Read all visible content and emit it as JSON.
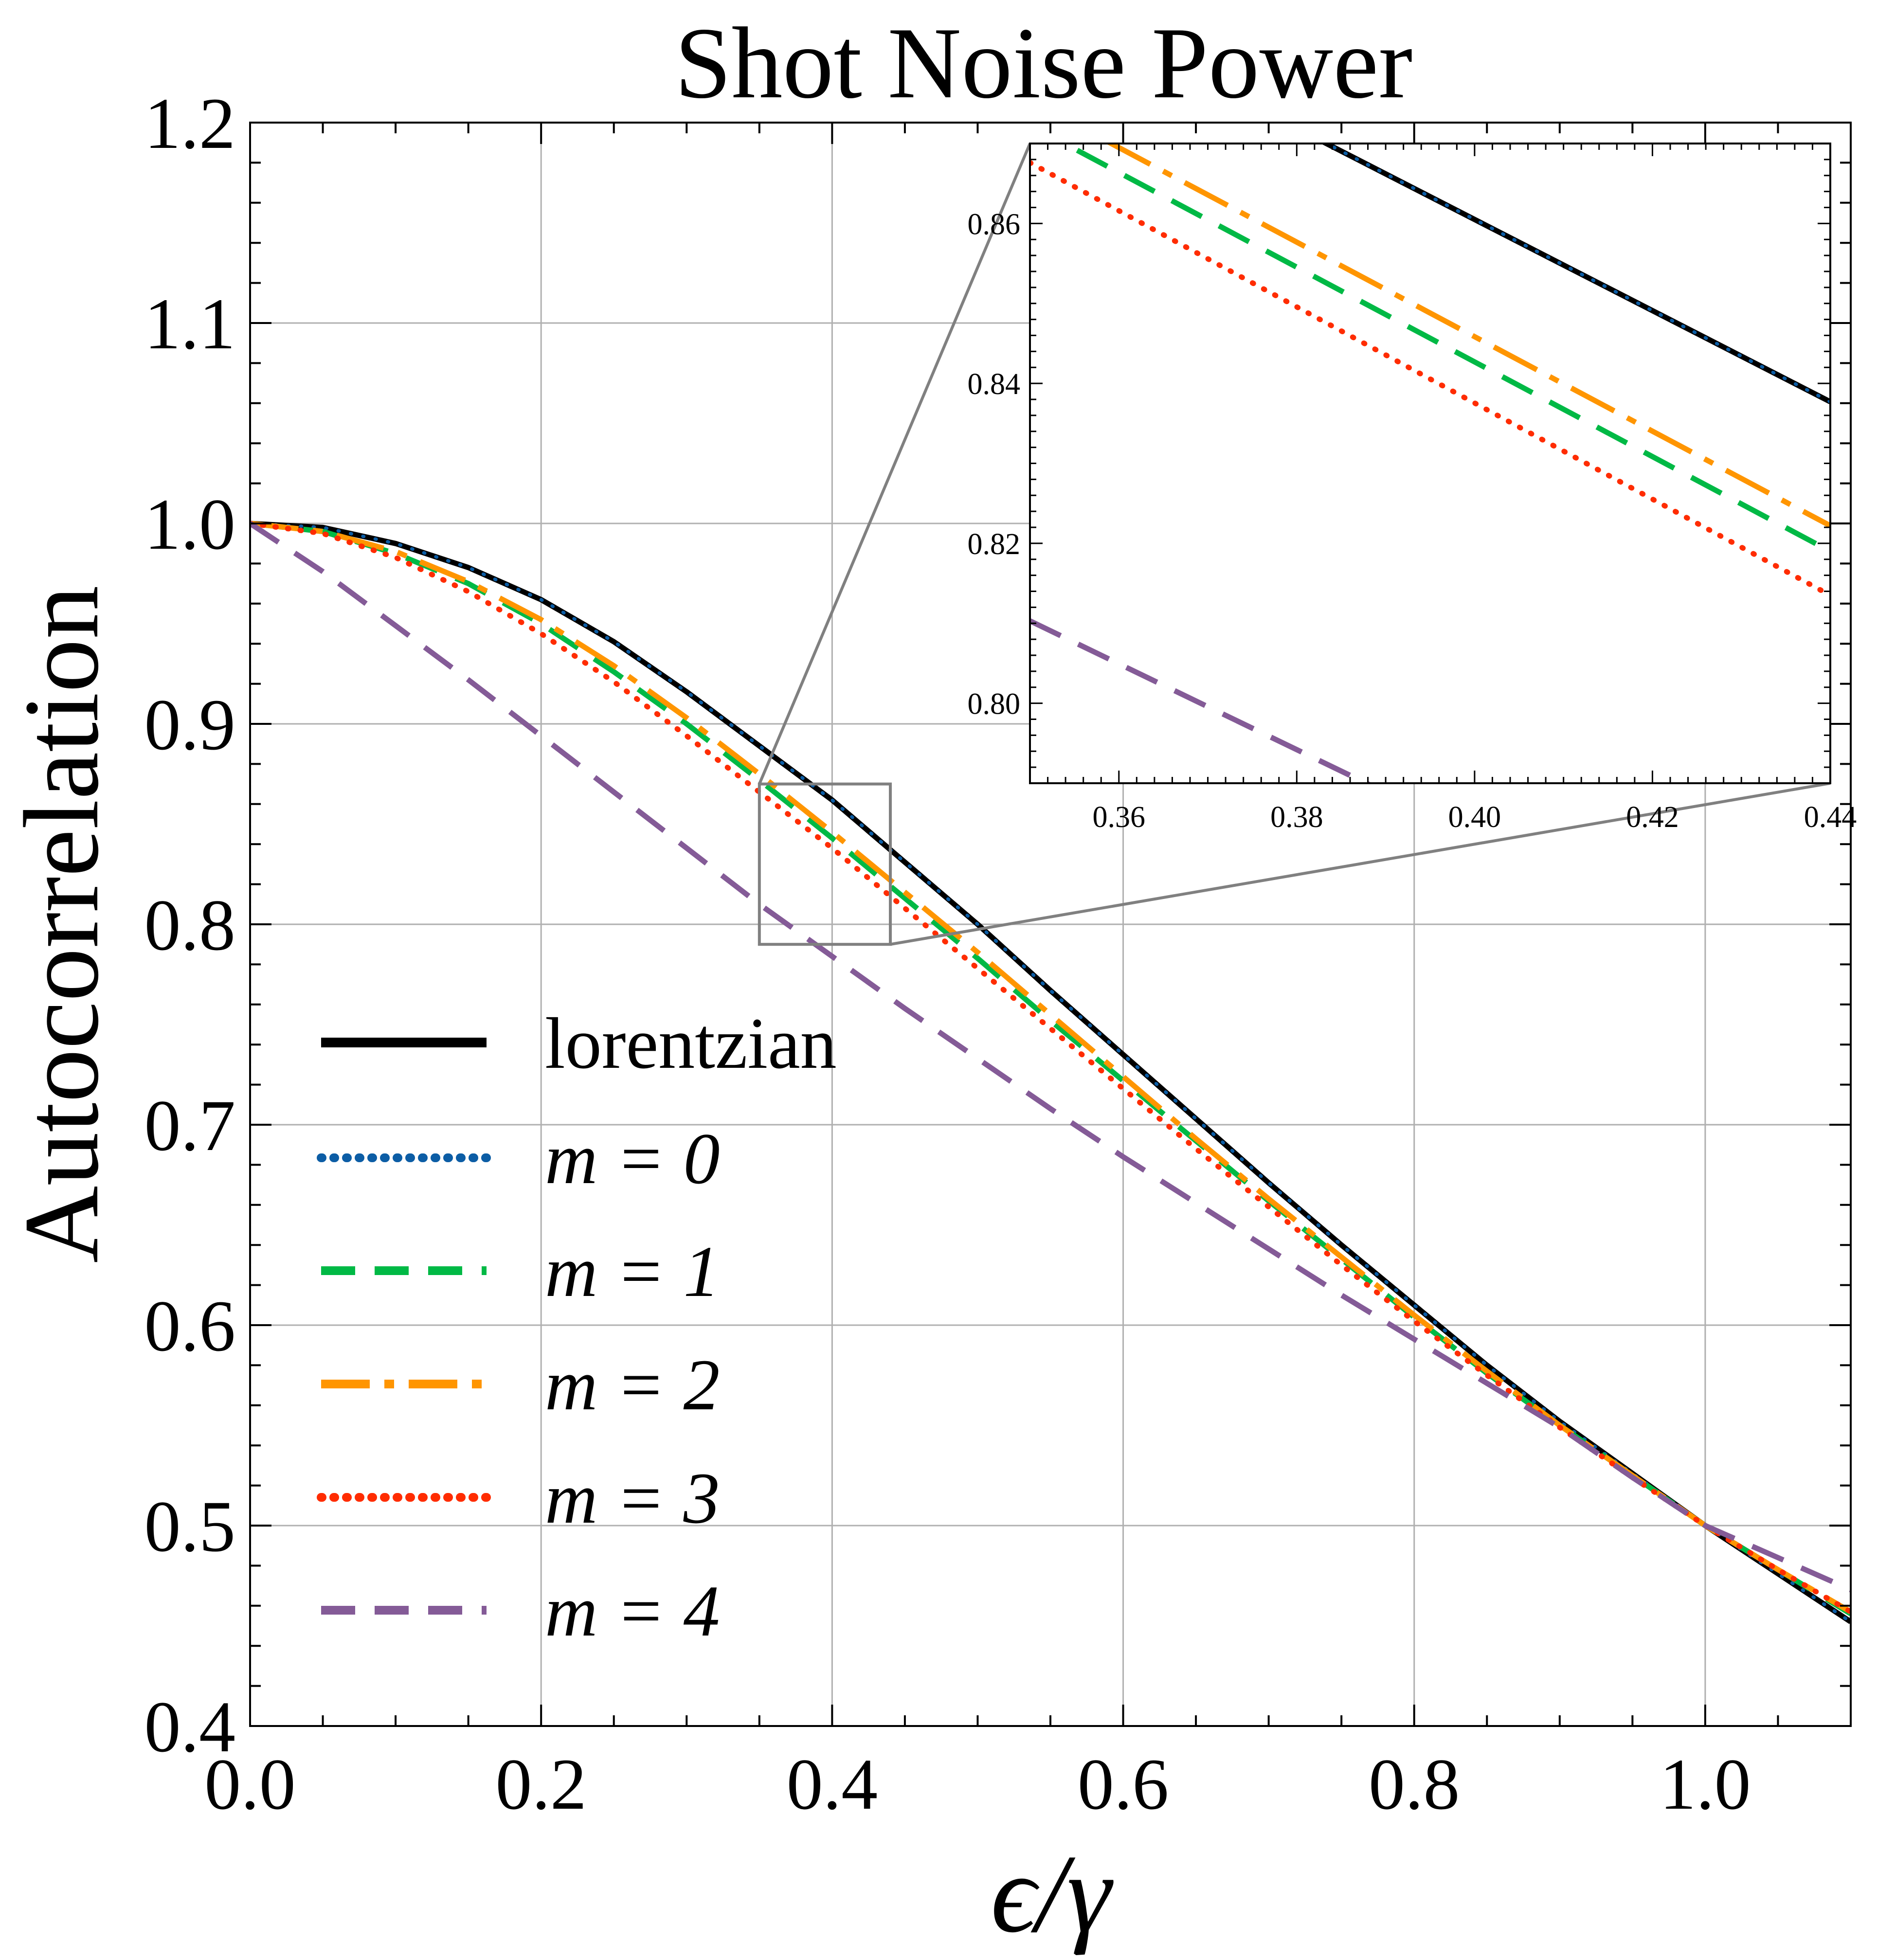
{
  "chart_data": {
    "type": "line",
    "title": "Shot Noise Power",
    "xlabel": "ϵ/γ",
    "ylabel": "Autocorrelation",
    "xlim": [
      0.0,
      1.1
    ],
    "ylim": [
      0.4,
      1.2
    ],
    "xticks": [
      "0.0",
      "0.2",
      "0.4",
      "0.6",
      "0.8",
      "1.0"
    ],
    "yticks": [
      "0.4",
      "0.5",
      "0.6",
      "0.7",
      "0.8",
      "0.9",
      "1.0",
      "1.1",
      "1.2"
    ],
    "grid": true,
    "legend_position": "lower-left",
    "x": [
      0.0,
      0.05,
      0.1,
      0.15,
      0.2,
      0.25,
      0.3,
      0.35,
      0.4,
      0.45,
      0.5,
      0.55,
      0.6,
      0.65,
      0.7,
      0.75,
      0.8,
      0.85,
      0.9,
      0.95,
      1.0,
      1.05,
      1.1
    ],
    "series": [
      {
        "name": "lorentzian",
        "color": "#000000",
        "dash": "solid",
        "width": 11,
        "values": [
          1.0,
          0.998,
          0.99,
          0.978,
          0.962,
          0.941,
          0.916,
          0.889,
          0.862,
          0.831,
          0.8,
          0.767,
          0.735,
          0.703,
          0.671,
          0.64,
          0.61,
          0.58,
          0.552,
          0.526,
          0.5,
          0.476,
          0.452
        ]
      },
      {
        "name": "m = 0",
        "color": "#0c5da5",
        "dash": "dotted",
        "width": 7,
        "values": [
          1.0,
          0.998,
          0.99,
          0.978,
          0.962,
          0.941,
          0.916,
          0.889,
          0.862,
          0.831,
          0.8,
          0.767,
          0.735,
          0.703,
          0.671,
          0.64,
          0.61,
          0.58,
          0.552,
          0.526,
          0.5,
          0.476,
          0.452
        ]
      },
      {
        "name": "m = 1",
        "color": "#00b945",
        "dash": "dashed",
        "width": 11,
        "values": [
          1.0,
          0.996,
          0.985,
          0.97,
          0.95,
          0.926,
          0.9,
          0.872,
          0.843,
          0.813,
          0.783,
          0.752,
          0.722,
          0.692,
          0.662,
          0.633,
          0.604,
          0.576,
          0.55,
          0.525,
          0.5,
          0.478,
          0.456
        ]
      },
      {
        "name": "m = 2",
        "color": "#ff9500",
        "dash": "dashdot",
        "width": 11,
        "values": [
          1.0,
          0.996,
          0.986,
          0.971,
          0.952,
          0.929,
          0.903,
          0.875,
          0.846,
          0.816,
          0.786,
          0.755,
          0.724,
          0.693,
          0.663,
          0.634,
          0.605,
          0.577,
          0.55,
          0.525,
          0.5,
          0.478,
          0.457
        ]
      },
      {
        "name": "m = 3",
        "color": "#ff2c00",
        "dash": "dotted",
        "width": 11,
        "values": [
          1.0,
          0.995,
          0.983,
          0.966,
          0.945,
          0.921,
          0.894,
          0.866,
          0.838,
          0.808,
          0.778,
          0.748,
          0.718,
          0.688,
          0.659,
          0.63,
          0.602,
          0.575,
          0.549,
          0.524,
          0.5,
          0.478,
          0.457
        ]
      },
      {
        "name": "m = 4",
        "color": "#845b97",
        "dash": "dashed",
        "width": 11,
        "values": [
          1.0,
          0.976,
          0.949,
          0.922,
          0.894,
          0.866,
          0.838,
          0.81,
          0.784,
          0.758,
          0.733,
          0.708,
          0.684,
          0.661,
          0.638,
          0.615,
          0.593,
          0.571,
          0.549,
          0.524,
          0.5,
          0.484,
          0.468
        ]
      }
    ],
    "legend_labels": {
      "lorentzian": "lorentzian",
      "m0": "m = 0",
      "m1": "m = 1",
      "m2": "m = 2",
      "m3": "m = 3",
      "m4": "m = 4"
    },
    "inset": {
      "xlim": [
        0.35,
        0.44
      ],
      "ylim": [
        0.79,
        0.87
      ],
      "xticks": [
        "0.36",
        "0.38",
        "0.40",
        "0.42",
        "0.44"
      ],
      "yticks": [
        "0.80",
        "0.82",
        "0.84",
        "0.86"
      ],
      "zoom_region": {
        "x0": 0.35,
        "x1": 0.44,
        "y0": 0.79,
        "y1": 0.87
      },
      "x": [
        0.35,
        0.44
      ],
      "series": [
        {
          "name": "lorentzian",
          "values": [
            0.889,
            0.8377
          ]
        },
        {
          "name": "m = 0",
          "values": [
            0.889,
            0.8377
          ]
        },
        {
          "name": "m = 1",
          "values": [
            0.8723,
            0.819
          ]
        },
        {
          "name": "m = 2",
          "values": [
            0.8754,
            0.8222
          ]
        },
        {
          "name": "m = 3",
          "values": [
            0.8676,
            0.8135
          ]
        },
        {
          "name": "m = 4",
          "values": [
            0.8103,
            0.762
          ]
        }
      ]
    }
  }
}
